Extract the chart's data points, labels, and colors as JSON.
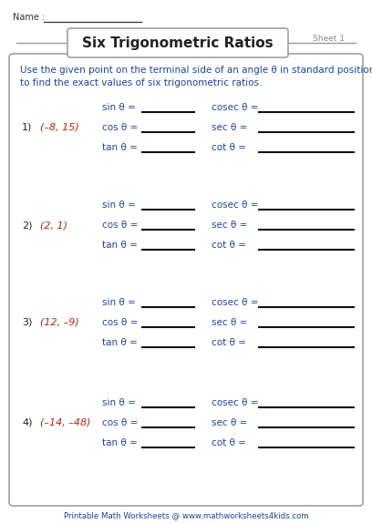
{
  "title": "Six Trigonometric Ratios",
  "sheet": "Sheet 1",
  "name_label": "Name :",
  "instruction": "Use the given point on the terminal side of an angle θ in standard position\nto find the exact values of six trigonometric ratios.",
  "problems": [
    {
      "num": "1)",
      "point": "(–8, 15)"
    },
    {
      "num": "2)",
      "point": "(2, 1)"
    },
    {
      "num": "3)",
      "point": "(12, –9)"
    },
    {
      "num": "4)",
      "point": "(–14, –48)"
    }
  ],
  "left_funcs": [
    "sin θ =",
    "cos θ =",
    "tan θ ="
  ],
  "right_funcs": [
    "cosec θ =",
    "sec θ =",
    "cot θ ="
  ],
  "footer": "Printable Math Worksheets @ www.mathworksheets4kids.com",
  "bg_color": "#ffffff",
  "border_color": "#999999",
  "title_color": "#222222",
  "instruction_color": "#1a44aa",
  "point_color": "#cc2200",
  "func_color": "#1a44aa",
  "line_color": "#111111",
  "footer_color": "#1a44aa",
  "sheet_color": "#888888",
  "name_color": "#333333"
}
